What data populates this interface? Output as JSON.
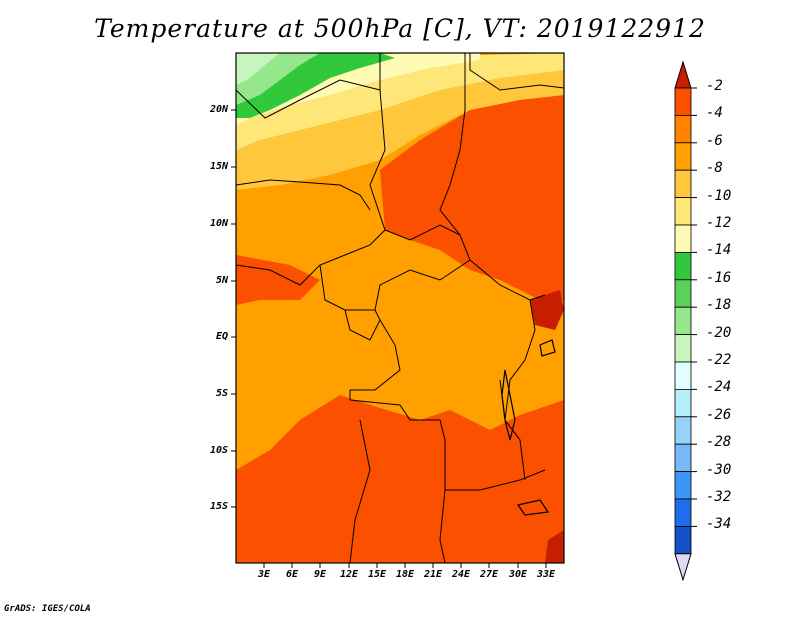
{
  "title": "Temperature at 500hPa [C], VT: 2019122912",
  "credit": "GrADS: IGES/COLA",
  "lat_labels": [
    "20N",
    "15N",
    "10N",
    "5N",
    "EQ",
    "5S",
    "10S",
    "15S"
  ],
  "lon_labels": [
    "3E",
    "6E",
    "9E",
    "12E",
    "15E",
    "18E",
    "21E",
    "24E",
    "27E",
    "30E",
    "33E"
  ],
  "colorbar": {
    "labels": [
      "-2",
      "-4",
      "-6",
      "-8",
      "-10",
      "-12",
      "-14",
      "-16",
      "-18",
      "-20",
      "-22",
      "-24",
      "-26",
      "-28",
      "-30",
      "-32",
      "-34"
    ],
    "colors": [
      "#c81e00",
      "#fa5000",
      "#ff8200",
      "#ffa000",
      "#ffc83c",
      "#ffe678",
      "#fffab4",
      "#32c83c",
      "#5ad25a",
      "#96e68c",
      "#c8f5be",
      "#e1ffff",
      "#b4f0fa",
      "#96d2fa",
      "#78b9fa",
      "#3c96f5",
      "#1e6eeb",
      "#1450c8",
      "#0a2896",
      "#dcdcf5"
    ]
  },
  "field_colors": {
    "light_green": "#c8f5be",
    "mid_green": "#96e68c",
    "green": "#32c83c",
    "pale_yellow": "#fffab4",
    "yellow": "#ffe678",
    "light_orange": "#ffc83c",
    "orange": "#ffa000",
    "deep_orange": "#fa5000",
    "red": "#c81e00"
  }
}
